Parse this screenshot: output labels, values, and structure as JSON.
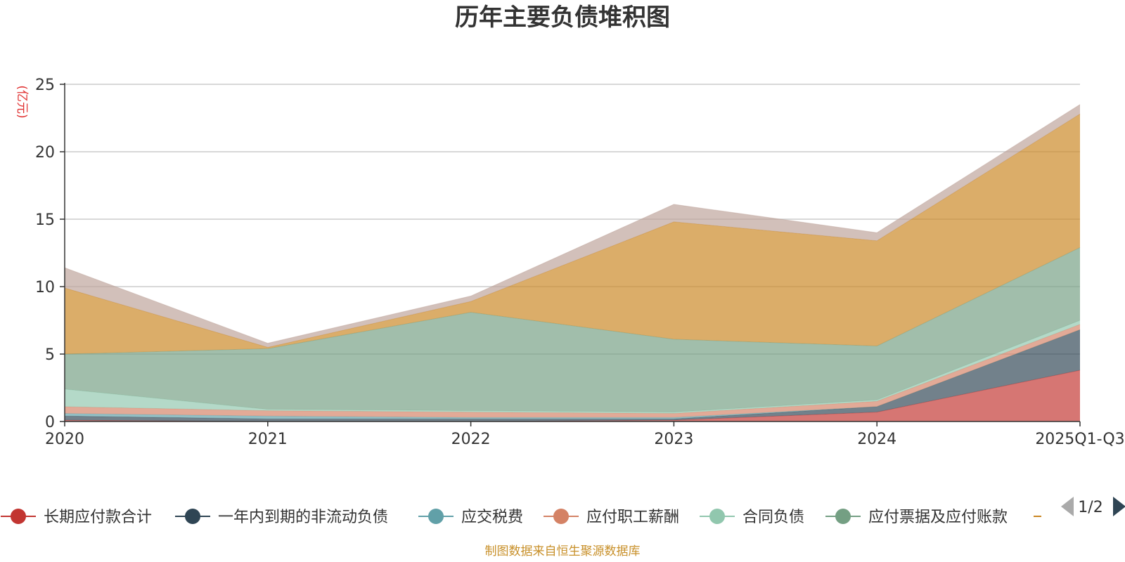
{
  "chart_data": {
    "type": "area",
    "title": "历年主要负债堆积图",
    "ylabel": "(亿元)",
    "ylim": [
      0,
      25
    ],
    "yticks": [
      0,
      5,
      10,
      15,
      20,
      25
    ],
    "categories": [
      "2020",
      "2021",
      "2022",
      "2023",
      "2024",
      "2025Q1-Q3"
    ],
    "grid": true,
    "stacked": true,
    "series": [
      {
        "name": "长期应付款合计",
        "color": "#c23531",
        "values": [
          0.1,
          0.0,
          0.0,
          0.1,
          0.7,
          3.8
        ]
      },
      {
        "name": "一年内到期的非流动负债",
        "color": "#2f4554",
        "values": [
          0.3,
          0.2,
          0.2,
          0.1,
          0.4,
          3.0
        ]
      },
      {
        "name": "应交税费",
        "color": "#61a0a8",
        "values": [
          0.2,
          0.2,
          0.1,
          0.1,
          0.0,
          0.0
        ]
      },
      {
        "name": "应付职工薪酬",
        "color": "#d48265",
        "values": [
          0.5,
          0.4,
          0.4,
          0.3,
          0.4,
          0.4
        ]
      },
      {
        "name": "合同负债",
        "color": "#91c7ae",
        "values": [
          1.3,
          0.1,
          0.1,
          0.1,
          0.1,
          0.3
        ]
      },
      {
        "name": "应付票据及应付账款",
        "color": "#749f83",
        "values": [
          2.6,
          4.5,
          7.3,
          5.4,
          4.0,
          5.4
        ]
      },
      {
        "name": "",
        "color": "#ca8622",
        "values": [
          4.9,
          0.1,
          0.8,
          8.7,
          7.8,
          9.9
        ]
      },
      {
        "name": "",
        "color": "#bda29a",
        "values": [
          1.5,
          0.3,
          0.4,
          1.3,
          0.6,
          0.7
        ]
      }
    ],
    "legend": {
      "placement": "bottom",
      "page": "1/2"
    }
  },
  "footer": {
    "source": "制图数据来自恒生聚源数据库"
  }
}
